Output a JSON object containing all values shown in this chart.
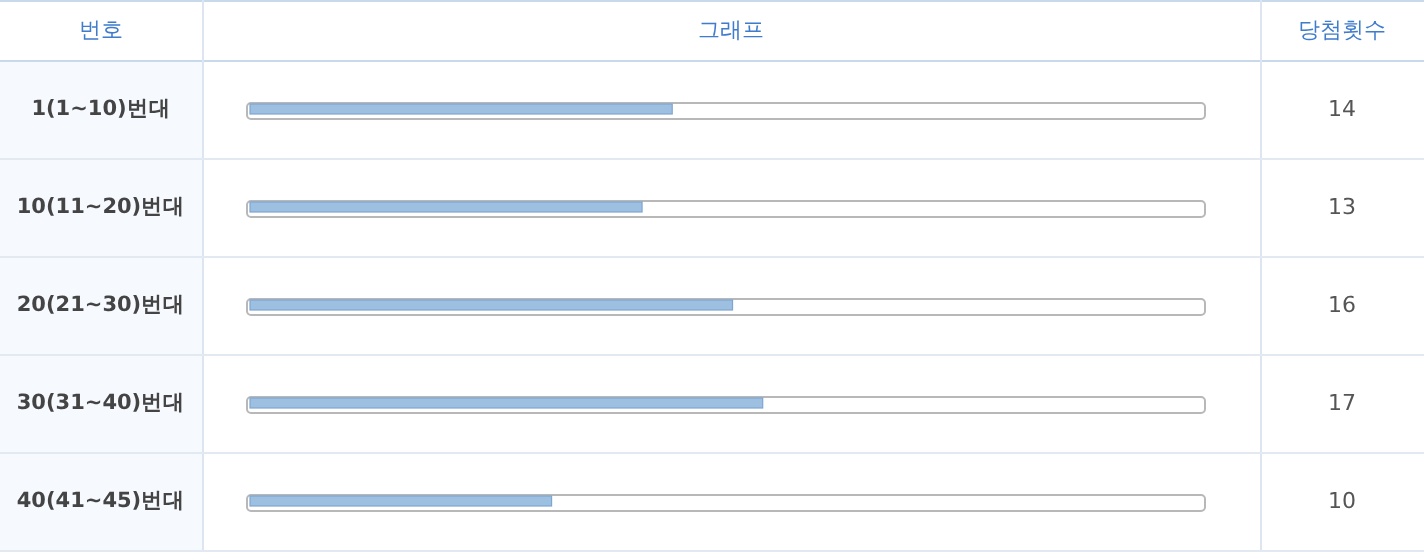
{
  "chart_data": {
    "type": "bar",
    "orientation": "horizontal",
    "title": "그래프",
    "ylabel": "번호",
    "annotations": [
      "당첨횟수"
    ],
    "categories": [
      "1(1~10)번대",
      "10(11~20)번대",
      "20(21~30)번대",
      "30(31~40)번대",
      "40(41~45)번대"
    ],
    "values": [
      14,
      13,
      16,
      17,
      10
    ],
    "color": "#9dbfe0",
    "xlim": [
      0,
      31.5
    ],
    "data_labels": true,
    "tick_labels": "y"
  }
}
